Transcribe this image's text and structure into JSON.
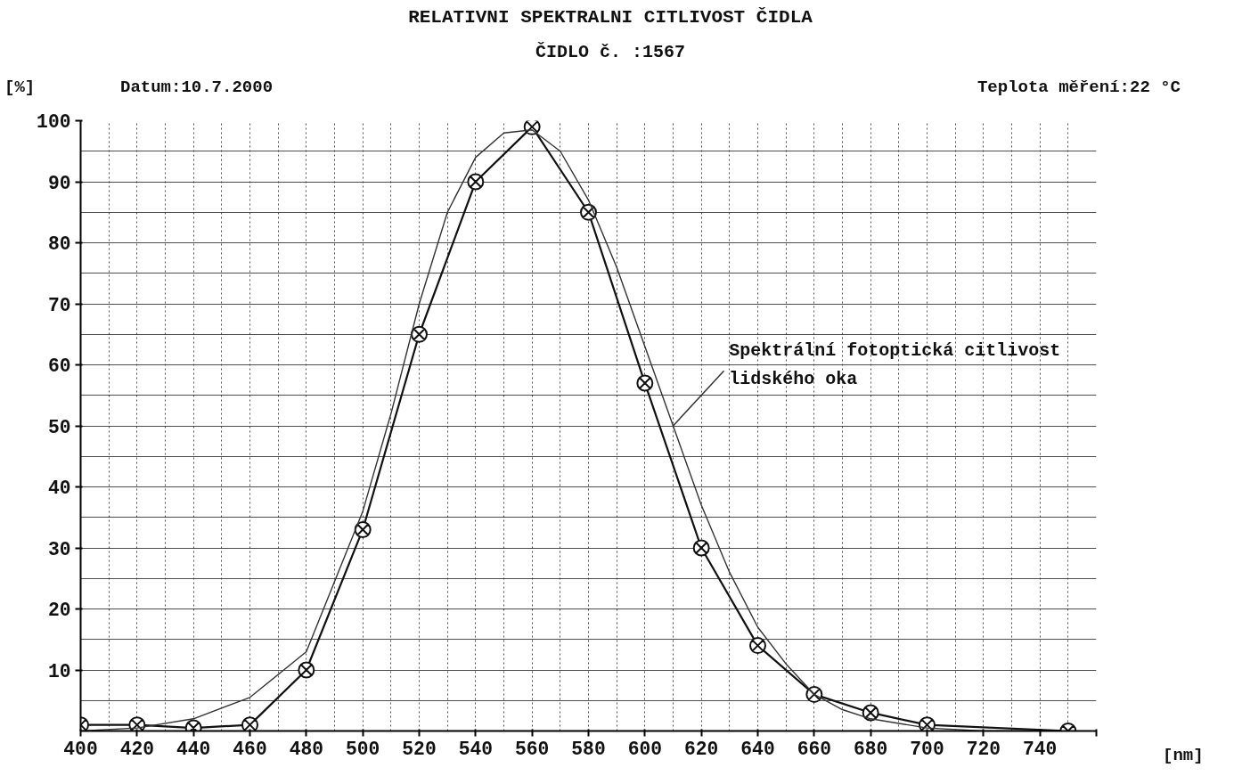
{
  "chart_data": {
    "type": "line",
    "title": "RELATIVNI SPEKTRALNI CITLIVOST ČIDLA",
    "subtitle": "ČIDLO č. :1567",
    "xlabel": "[nm]",
    "ylabel": "[%]",
    "annotations": [
      "Datum:10.7.2000",
      "Teplota měření:22 °C"
    ],
    "series": [
      {
        "color": "#111111",
        "marker": "cross",
        "x": [
          400,
          420,
          440,
          460,
          480,
          500,
          520,
          540,
          560,
          580,
          600,
          620,
          640,
          660,
          680,
          700,
          750
        ],
        "values": [
          1,
          1,
          0.5,
          1,
          10,
          33,
          65,
          90,
          99,
          85,
          57,
          30,
          14,
          6,
          3,
          1,
          0
        ]
      },
      {
        "name": "Spektrální fotoptická citlivost lidského oka",
        "color": "#333333",
        "marker": "none",
        "x": [
          400,
          420,
          440,
          460,
          480,
          500,
          510,
          520,
          530,
          540,
          550,
          560,
          570,
          580,
          590,
          600,
          610,
          620,
          630,
          640,
          650,
          660,
          670,
          680,
          700,
          720,
          740
        ],
        "values": [
          0,
          0.5,
          2,
          5.5,
          13,
          36,
          52,
          70,
          85,
          94,
          98,
          98.5,
          95,
          87,
          76,
          63,
          50,
          37,
          26,
          17,
          11,
          6,
          3.5,
          2,
          0.5,
          0,
          0
        ]
      }
    ],
    "xlim": [
      400,
      760
    ],
    "ylim": [
      0,
      100
    ],
    "xticks": [
      400,
      420,
      440,
      460,
      480,
      500,
      520,
      540,
      560,
      580,
      600,
      620,
      640,
      660,
      680,
      700,
      720,
      740,
      {
        "value": 760,
        "label": null
      }
    ],
    "yticks": [
      10,
      20,
      30,
      40,
      50,
      60,
      70,
      80,
      90,
      100
    ],
    "grid": true,
    "line_style": "solid"
  }
}
